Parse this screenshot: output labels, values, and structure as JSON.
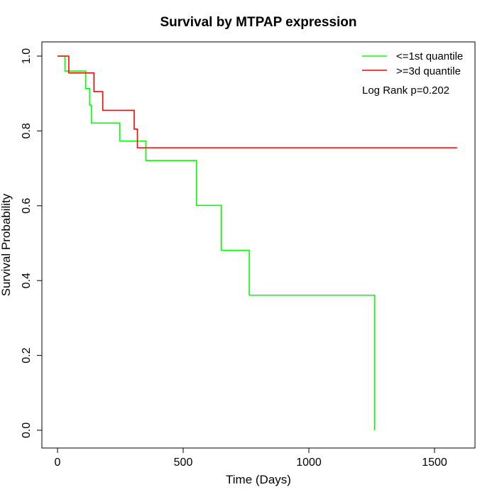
{
  "chart_data": {
    "type": "line",
    "title": "Survival by MTPAP expression",
    "xlabel": "Time (Days)",
    "ylabel": "Survival Probability",
    "xlim": [
      0,
      1650
    ],
    "ylim": [
      0,
      1.0
    ],
    "x_ticks": [
      0,
      500,
      1000,
      1500
    ],
    "y_ticks": [
      0.0,
      0.2,
      0.4,
      0.6,
      0.8,
      1.0
    ],
    "x_tick_labels": [
      "0",
      "500",
      "1000",
      "1500"
    ],
    "y_tick_labels": [
      "0.0",
      "0.2",
      "0.4",
      "0.6",
      "0.8",
      "1.0"
    ],
    "legend_position": "top-right",
    "grid": false,
    "annotation": "Log Rank p=0.202",
    "series": [
      {
        "name": "<=1st quantile",
        "color": "#00ff00",
        "step_points": [
          [
            0,
            1.0
          ],
          [
            30,
            0.96
          ],
          [
            112,
            0.913
          ],
          [
            128,
            0.869
          ],
          [
            135,
            0.821
          ],
          [
            248,
            0.773
          ],
          [
            352,
            0.721
          ],
          [
            553,
            0.601
          ],
          [
            652,
            0.481
          ],
          [
            763,
            0.361
          ],
          [
            1262,
            0.0
          ]
        ],
        "end_x": 1262
      },
      {
        "name": ">=3d quantile",
        "color": "#ff0000",
        "step_points": [
          [
            0,
            1.0
          ],
          [
            45,
            0.955
          ],
          [
            145,
            0.905
          ],
          [
            180,
            0.855
          ],
          [
            305,
            0.805
          ],
          [
            318,
            0.755
          ]
        ],
        "end_x": 1590
      }
    ]
  }
}
